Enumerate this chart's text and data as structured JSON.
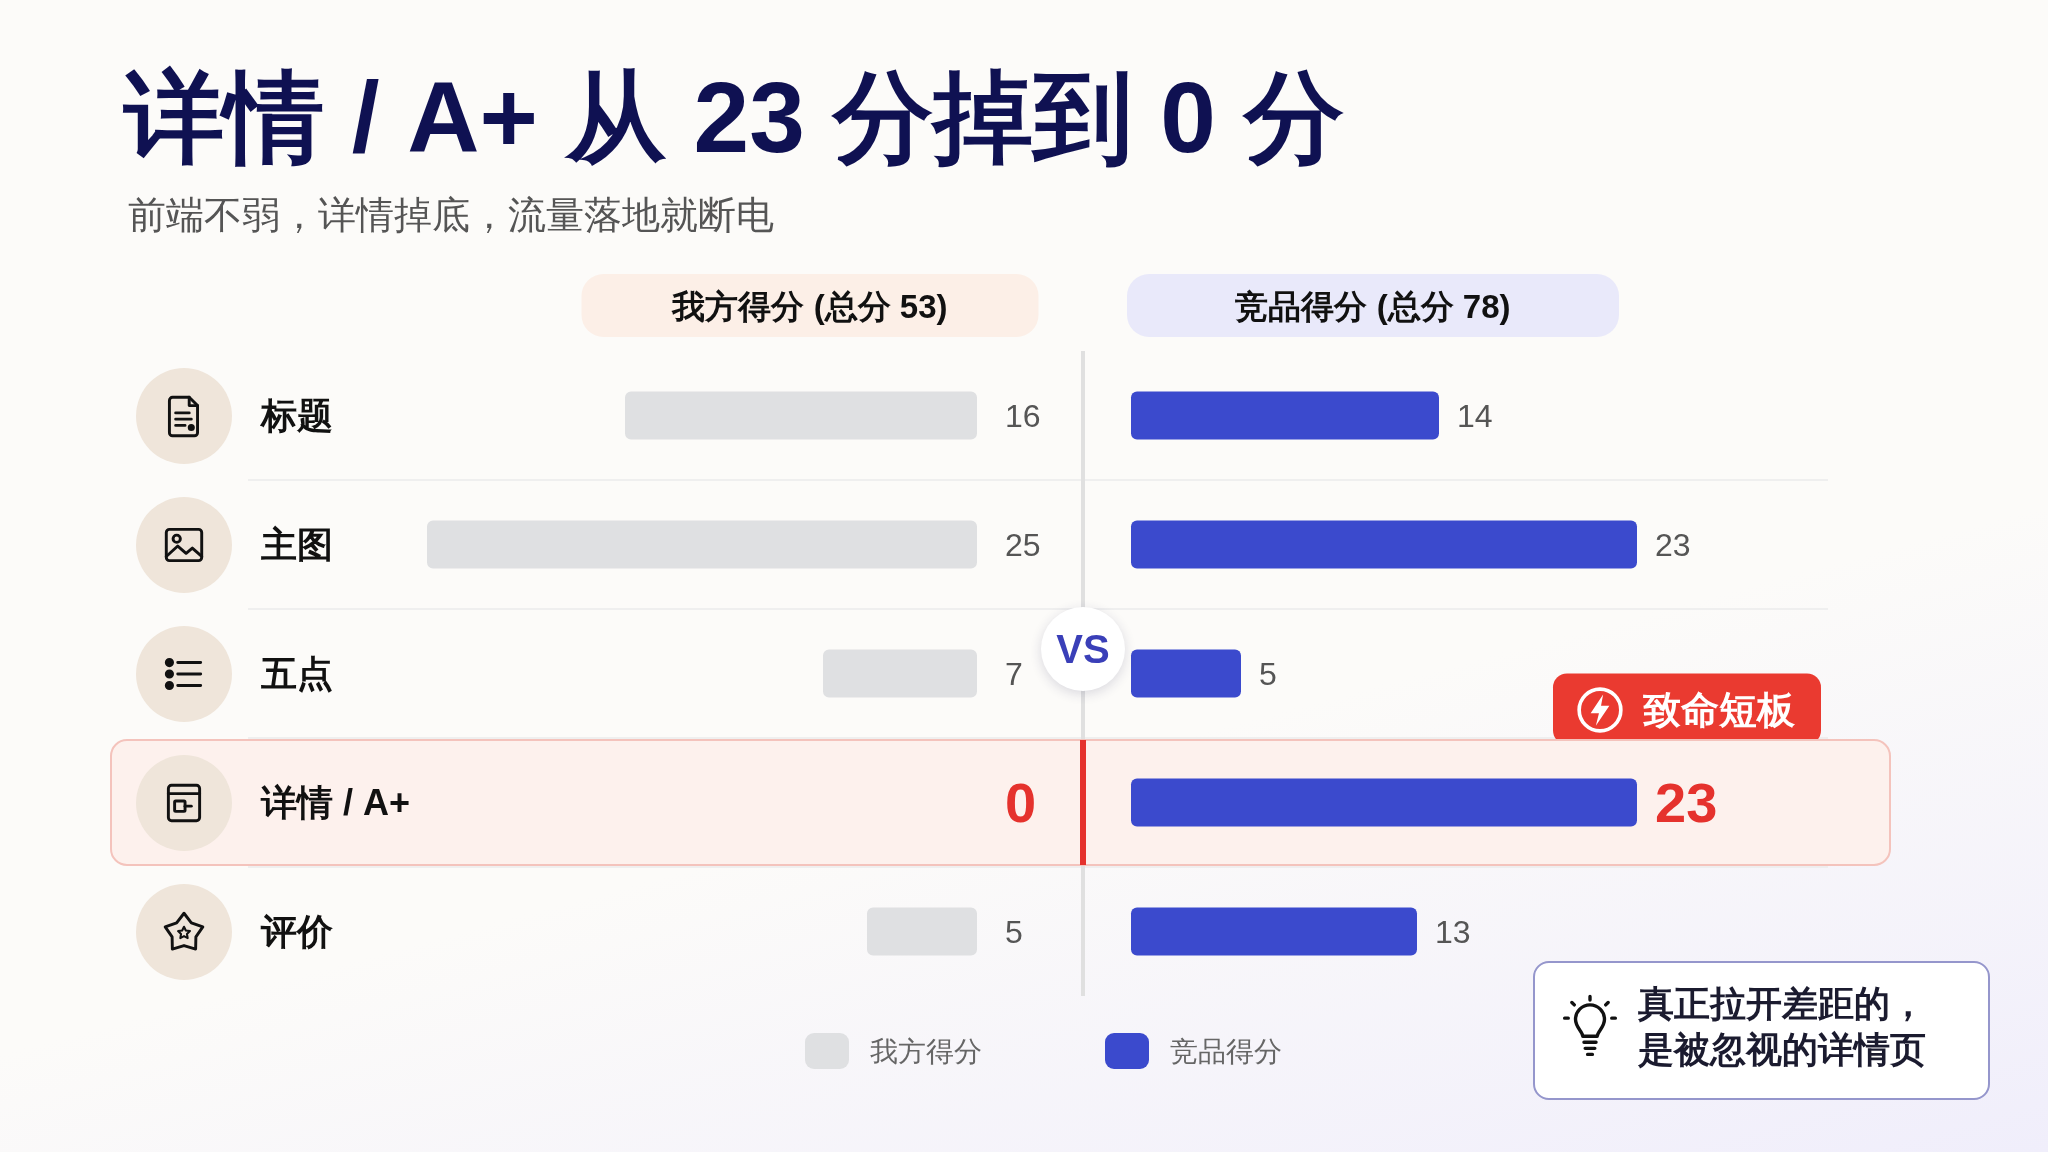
{
  "chart_data": [
    {
      "type": "bar",
      "orientation": "horizontal",
      "title": "详情 / A+ 从 23 分掉到 0 分",
      "subtitle": "前端不弱，详情掉底，流量落地就断电",
      "annotations": [
        "我方得分 (总分 53)"
      ],
      "categories": [
        "标题",
        "主图",
        "五点",
        "详情 / A+",
        "评价"
      ],
      "series": [
        {
          "name": "我方得分",
          "color": "#dfe0e2",
          "values": [
            16,
            25,
            7,
            0,
            5
          ]
        }
      ],
      "xlim": [
        25,
        0
      ],
      "data_labels": true,
      "tick_labels": "y",
      "grid": "y",
      "legend": "bottom",
      "bands": [
        {
          "axis": "y",
          "from": "详情 / A+",
          "to": "详情 / A+",
          "color": "#fdf1ed"
        }
      ]
    },
    {
      "type": "bar",
      "orientation": "horizontal",
      "annotations": [
        "竞品得分 (总分 78)",
        "VS",
        "真正拉开差距的，是被忽视的详情页",
        {
          "text": "致命短板",
          "x": 23,
          "y": "详情 / A+"
        }
      ],
      "categories": [
        "标题",
        "主图",
        "五点",
        "详情 / A+",
        "评价"
      ],
      "series": [
        {
          "name": "竞品得分",
          "color": "#3b4acd",
          "values": [
            14,
            23,
            5,
            23,
            13
          ]
        }
      ],
      "data_labels": true,
      "tick_labels": false,
      "grid": "y",
      "legend": "bottom",
      "bands": [
        {
          "axis": "y",
          "from": "详情 / A+",
          "to": "详情 / A+",
          "color": "#fdf1ed"
        }
      ]
    }
  ]
}
